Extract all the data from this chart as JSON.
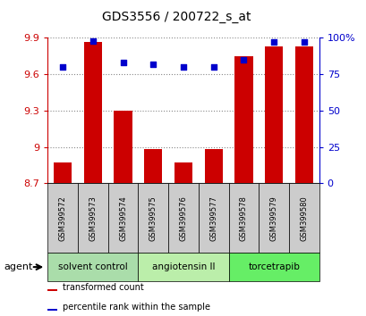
{
  "title": "GDS3556 / 200722_s_at",
  "samples": [
    "GSM399572",
    "GSM399573",
    "GSM399574",
    "GSM399575",
    "GSM399576",
    "GSM399577",
    "GSM399578",
    "GSM399579",
    "GSM399580"
  ],
  "transformed_counts": [
    8.87,
    9.87,
    9.3,
    8.98,
    8.87,
    8.98,
    9.75,
    9.83,
    9.83
  ],
  "percentile_ranks": [
    80,
    98,
    83,
    82,
    80,
    80,
    85,
    97,
    97
  ],
  "ylim_left": [
    8.7,
    9.9
  ],
  "yticks_left": [
    8.7,
    9.0,
    9.3,
    9.6,
    9.9
  ],
  "ytick_labels_left": [
    "8.7",
    "9",
    "9.3",
    "9.6",
    "9.9"
  ],
  "ylim_right": [
    0,
    100
  ],
  "yticks_right": [
    0,
    25,
    50,
    75,
    100
  ],
  "ytick_labels_right": [
    "0",
    "25",
    "50",
    "75",
    "100%"
  ],
  "bar_color": "#cc0000",
  "dot_color": "#0000cc",
  "bar_bottom": 8.7,
  "groups": [
    {
      "label": "solvent control",
      "samples": [
        "GSM399572",
        "GSM399573",
        "GSM399574"
      ],
      "color": "#aaddaa"
    },
    {
      "label": "angiotensin II",
      "samples": [
        "GSM399575",
        "GSM399576",
        "GSM399577"
      ],
      "color": "#bbeeaa"
    },
    {
      "label": "torcetrapib",
      "samples": [
        "GSM399578",
        "GSM399579",
        "GSM399580"
      ],
      "color": "#66ee66"
    }
  ],
  "agent_label": "agent",
  "legend_bar_label": "transformed count",
  "legend_dot_label": "percentile rank within the sample",
  "grid_color": "#888888",
  "left_axis_color": "#cc0000",
  "right_axis_color": "#0000cc",
  "bar_width": 0.6,
  "sample_bg_color": "#cccccc"
}
